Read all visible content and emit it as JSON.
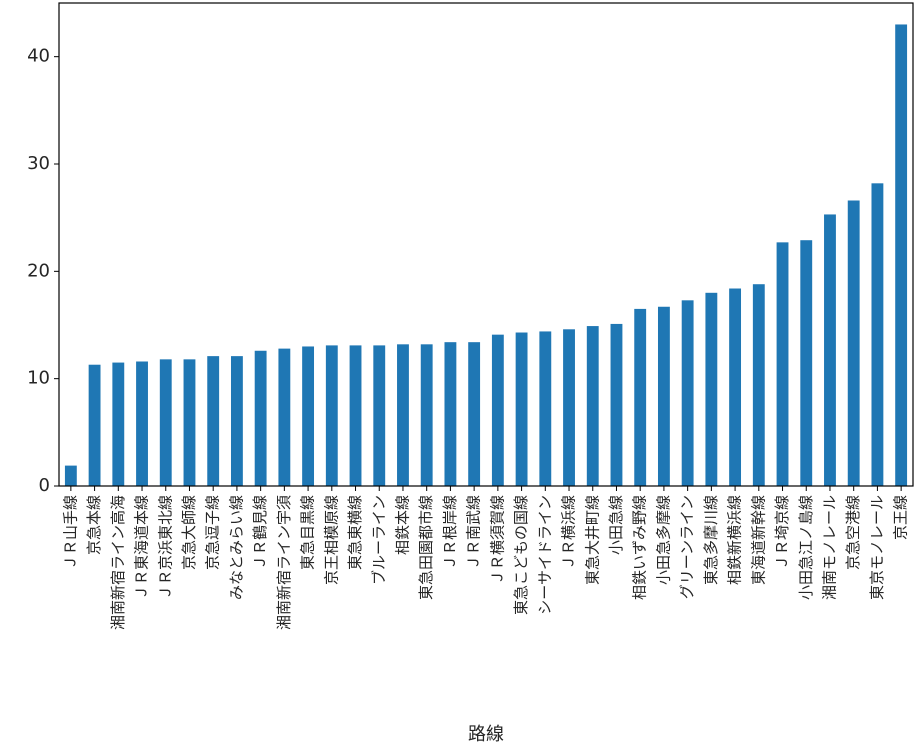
{
  "chart_data": {
    "type": "bar",
    "title": "",
    "xlabel": "路線",
    "ylabel": "",
    "ylim": [
      0,
      45
    ],
    "yticks": [
      0,
      10,
      20,
      30,
      40
    ],
    "grid": false,
    "bar_color": "#1f77b4",
    "categories": [
      "ＪＲ山手線",
      "京急本線",
      "湘南新宿ライン高海",
      "ＪＲ東海道本線",
      "ＪＲ京浜東北線",
      "京急大師線",
      "京急逗子線",
      "みなとみらい線",
      "ＪＲ鶴見線",
      "湘南新宿ライン宇須",
      "東急目黒線",
      "京王相模原線",
      "東急東横線",
      "ブルーライン",
      "相鉄本線",
      "東急田園都市線",
      "ＪＲ根岸線",
      "ＪＲ南武線",
      "ＪＲ横須賀線",
      "東急こどもの国線",
      "シーサイドライン",
      "ＪＲ横浜線",
      "東急大井町線",
      "小田急線",
      "相鉄いずみ野線",
      "小田急多摩線",
      "グリーンライン",
      "東急多摩川線",
      "相鉄新横浜線",
      "東海道新幹線",
      "ＪＲ埼京線",
      "小田急江ノ島線",
      "湘南モノレール",
      "京急空港線",
      "東京モノレール",
      "京王線"
    ],
    "values": [
      1.9,
      11.3,
      11.5,
      11.6,
      11.8,
      11.8,
      12.1,
      12.1,
      12.6,
      12.8,
      13.0,
      13.1,
      13.1,
      13.1,
      13.2,
      13.2,
      13.4,
      13.4,
      14.1,
      14.3,
      14.4,
      14.6,
      14.9,
      15.1,
      16.5,
      16.7,
      17.3,
      18.0,
      18.4,
      18.8,
      22.7,
      22.9,
      25.3,
      26.6,
      28.2,
      43.0
    ]
  }
}
